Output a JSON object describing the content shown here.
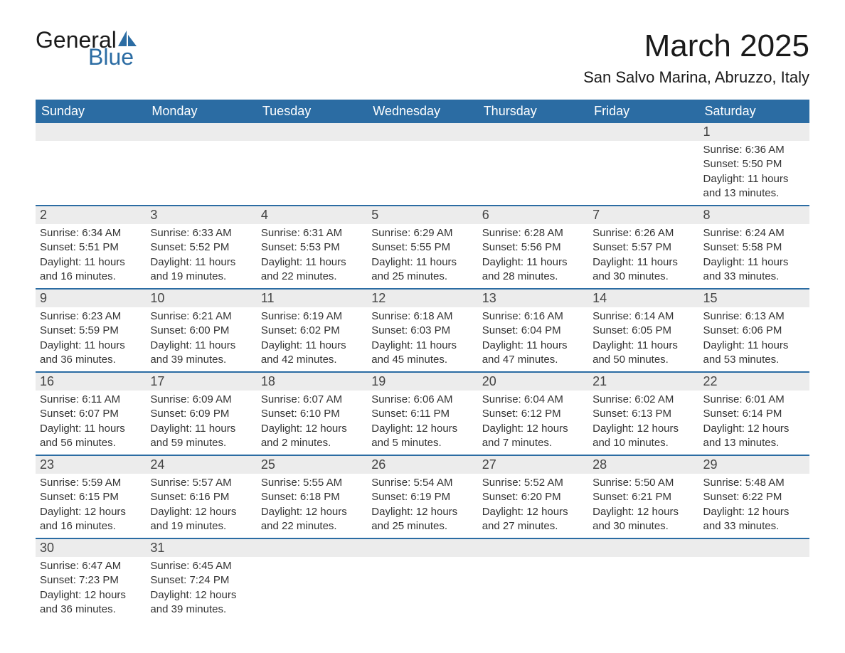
{
  "logo": {
    "word1": "General",
    "word2": "Blue",
    "sail_color": "#2b6ca3",
    "text_color_dark": "#1a1a1a"
  },
  "title": "March 2025",
  "location": "San Salvo Marina, Abruzzo, Italy",
  "colors": {
    "header_bg": "#2b6ca3",
    "header_text": "#ffffff",
    "daynum_bg": "#ececec",
    "row_border": "#2b6ca3",
    "body_text": "#333333",
    "page_bg": "#ffffff"
  },
  "typography": {
    "title_fontsize": 44,
    "location_fontsize": 22,
    "dayheader_fontsize": 18,
    "daynum_fontsize": 18,
    "cell_fontsize": 15,
    "font_family": "Arial"
  },
  "day_headers": [
    "Sunday",
    "Monday",
    "Tuesday",
    "Wednesday",
    "Thursday",
    "Friday",
    "Saturday"
  ],
  "weeks": [
    {
      "nums": [
        "",
        "",
        "",
        "",
        "",
        "",
        "1"
      ],
      "cells": [
        null,
        null,
        null,
        null,
        null,
        null,
        {
          "sunrise": "Sunrise: 6:36 AM",
          "sunset": "Sunset: 5:50 PM",
          "daylight1": "Daylight: 11 hours",
          "daylight2": "and 13 minutes."
        }
      ]
    },
    {
      "nums": [
        "2",
        "3",
        "4",
        "5",
        "6",
        "7",
        "8"
      ],
      "cells": [
        {
          "sunrise": "Sunrise: 6:34 AM",
          "sunset": "Sunset: 5:51 PM",
          "daylight1": "Daylight: 11 hours",
          "daylight2": "and 16 minutes."
        },
        {
          "sunrise": "Sunrise: 6:33 AM",
          "sunset": "Sunset: 5:52 PM",
          "daylight1": "Daylight: 11 hours",
          "daylight2": "and 19 minutes."
        },
        {
          "sunrise": "Sunrise: 6:31 AM",
          "sunset": "Sunset: 5:53 PM",
          "daylight1": "Daylight: 11 hours",
          "daylight2": "and 22 minutes."
        },
        {
          "sunrise": "Sunrise: 6:29 AM",
          "sunset": "Sunset: 5:55 PM",
          "daylight1": "Daylight: 11 hours",
          "daylight2": "and 25 minutes."
        },
        {
          "sunrise": "Sunrise: 6:28 AM",
          "sunset": "Sunset: 5:56 PM",
          "daylight1": "Daylight: 11 hours",
          "daylight2": "and 28 minutes."
        },
        {
          "sunrise": "Sunrise: 6:26 AM",
          "sunset": "Sunset: 5:57 PM",
          "daylight1": "Daylight: 11 hours",
          "daylight2": "and 30 minutes."
        },
        {
          "sunrise": "Sunrise: 6:24 AM",
          "sunset": "Sunset: 5:58 PM",
          "daylight1": "Daylight: 11 hours",
          "daylight2": "and 33 minutes."
        }
      ]
    },
    {
      "nums": [
        "9",
        "10",
        "11",
        "12",
        "13",
        "14",
        "15"
      ],
      "cells": [
        {
          "sunrise": "Sunrise: 6:23 AM",
          "sunset": "Sunset: 5:59 PM",
          "daylight1": "Daylight: 11 hours",
          "daylight2": "and 36 minutes."
        },
        {
          "sunrise": "Sunrise: 6:21 AM",
          "sunset": "Sunset: 6:00 PM",
          "daylight1": "Daylight: 11 hours",
          "daylight2": "and 39 minutes."
        },
        {
          "sunrise": "Sunrise: 6:19 AM",
          "sunset": "Sunset: 6:02 PM",
          "daylight1": "Daylight: 11 hours",
          "daylight2": "and 42 minutes."
        },
        {
          "sunrise": "Sunrise: 6:18 AM",
          "sunset": "Sunset: 6:03 PM",
          "daylight1": "Daylight: 11 hours",
          "daylight2": "and 45 minutes."
        },
        {
          "sunrise": "Sunrise: 6:16 AM",
          "sunset": "Sunset: 6:04 PM",
          "daylight1": "Daylight: 11 hours",
          "daylight2": "and 47 minutes."
        },
        {
          "sunrise": "Sunrise: 6:14 AM",
          "sunset": "Sunset: 6:05 PM",
          "daylight1": "Daylight: 11 hours",
          "daylight2": "and 50 minutes."
        },
        {
          "sunrise": "Sunrise: 6:13 AM",
          "sunset": "Sunset: 6:06 PM",
          "daylight1": "Daylight: 11 hours",
          "daylight2": "and 53 minutes."
        }
      ]
    },
    {
      "nums": [
        "16",
        "17",
        "18",
        "19",
        "20",
        "21",
        "22"
      ],
      "cells": [
        {
          "sunrise": "Sunrise: 6:11 AM",
          "sunset": "Sunset: 6:07 PM",
          "daylight1": "Daylight: 11 hours",
          "daylight2": "and 56 minutes."
        },
        {
          "sunrise": "Sunrise: 6:09 AM",
          "sunset": "Sunset: 6:09 PM",
          "daylight1": "Daylight: 11 hours",
          "daylight2": "and 59 minutes."
        },
        {
          "sunrise": "Sunrise: 6:07 AM",
          "sunset": "Sunset: 6:10 PM",
          "daylight1": "Daylight: 12 hours",
          "daylight2": "and 2 minutes."
        },
        {
          "sunrise": "Sunrise: 6:06 AM",
          "sunset": "Sunset: 6:11 PM",
          "daylight1": "Daylight: 12 hours",
          "daylight2": "and 5 minutes."
        },
        {
          "sunrise": "Sunrise: 6:04 AM",
          "sunset": "Sunset: 6:12 PM",
          "daylight1": "Daylight: 12 hours",
          "daylight2": "and 7 minutes."
        },
        {
          "sunrise": "Sunrise: 6:02 AM",
          "sunset": "Sunset: 6:13 PM",
          "daylight1": "Daylight: 12 hours",
          "daylight2": "and 10 minutes."
        },
        {
          "sunrise": "Sunrise: 6:01 AM",
          "sunset": "Sunset: 6:14 PM",
          "daylight1": "Daylight: 12 hours",
          "daylight2": "and 13 minutes."
        }
      ]
    },
    {
      "nums": [
        "23",
        "24",
        "25",
        "26",
        "27",
        "28",
        "29"
      ],
      "cells": [
        {
          "sunrise": "Sunrise: 5:59 AM",
          "sunset": "Sunset: 6:15 PM",
          "daylight1": "Daylight: 12 hours",
          "daylight2": "and 16 minutes."
        },
        {
          "sunrise": "Sunrise: 5:57 AM",
          "sunset": "Sunset: 6:16 PM",
          "daylight1": "Daylight: 12 hours",
          "daylight2": "and 19 minutes."
        },
        {
          "sunrise": "Sunrise: 5:55 AM",
          "sunset": "Sunset: 6:18 PM",
          "daylight1": "Daylight: 12 hours",
          "daylight2": "and 22 minutes."
        },
        {
          "sunrise": "Sunrise: 5:54 AM",
          "sunset": "Sunset: 6:19 PM",
          "daylight1": "Daylight: 12 hours",
          "daylight2": "and 25 minutes."
        },
        {
          "sunrise": "Sunrise: 5:52 AM",
          "sunset": "Sunset: 6:20 PM",
          "daylight1": "Daylight: 12 hours",
          "daylight2": "and 27 minutes."
        },
        {
          "sunrise": "Sunrise: 5:50 AM",
          "sunset": "Sunset: 6:21 PM",
          "daylight1": "Daylight: 12 hours",
          "daylight2": "and 30 minutes."
        },
        {
          "sunrise": "Sunrise: 5:48 AM",
          "sunset": "Sunset: 6:22 PM",
          "daylight1": "Daylight: 12 hours",
          "daylight2": "and 33 minutes."
        }
      ]
    },
    {
      "nums": [
        "30",
        "31",
        "",
        "",
        "",
        "",
        ""
      ],
      "cells": [
        {
          "sunrise": "Sunrise: 6:47 AM",
          "sunset": "Sunset: 7:23 PM",
          "daylight1": "Daylight: 12 hours",
          "daylight2": "and 36 minutes."
        },
        {
          "sunrise": "Sunrise: 6:45 AM",
          "sunset": "Sunset: 7:24 PM",
          "daylight1": "Daylight: 12 hours",
          "daylight2": "and 39 minutes."
        },
        null,
        null,
        null,
        null,
        null
      ]
    }
  ]
}
